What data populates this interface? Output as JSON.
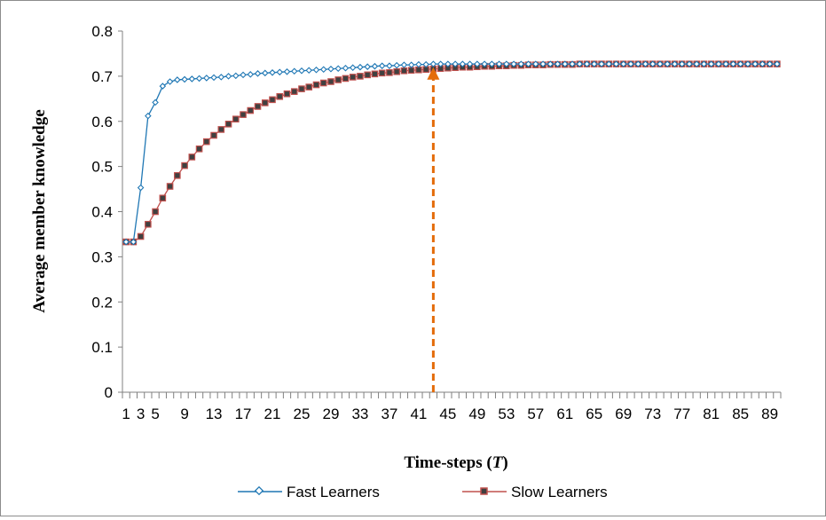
{
  "chart_data": {
    "type": "line",
    "xlabel_text": "Time-steps (",
    "xlabel_var": "T",
    "xlabel_close": ")",
    "ylabel": "Average member knowledge",
    "ylim": [
      0,
      0.8
    ],
    "yticks": [
      "0",
      "0.1",
      "0.2",
      "0.3",
      "0.4",
      "0.5",
      "0.6",
      "0.7",
      "0.8"
    ],
    "xlim": [
      1,
      90
    ],
    "xtick_labels": [
      "1",
      "3",
      "5",
      "9",
      "13",
      "17",
      "21",
      "25",
      "29",
      "33",
      "37",
      "41",
      "45",
      "49",
      "53",
      "57",
      "61",
      "65",
      "69",
      "73",
      "77",
      "81",
      "85",
      "89"
    ],
    "grid": false,
    "legend_position": "bottom",
    "marker_line_at_x": 43,
    "marker_line_top_y": 0.72,
    "marker_color": "#E46C0A",
    "series": [
      {
        "name": "Fast Learners",
        "color": "#1F77B4",
        "marker": "diamond",
        "values": [
          0.333,
          0.333,
          0.453,
          0.612,
          0.642,
          0.678,
          0.688,
          0.692,
          0.693,
          0.694,
          0.695,
          0.696,
          0.697,
          0.698,
          0.7,
          0.701,
          0.703,
          0.704,
          0.706,
          0.707,
          0.708,
          0.709,
          0.71,
          0.711,
          0.712,
          0.713,
          0.714,
          0.715,
          0.716,
          0.717,
          0.718,
          0.719,
          0.72,
          0.721,
          0.722,
          0.723,
          0.723,
          0.724,
          0.725,
          0.725,
          0.726,
          0.726,
          0.727,
          0.727,
          0.727,
          0.727,
          0.727,
          0.727,
          0.727,
          0.727,
          0.727,
          0.727,
          0.727,
          0.727,
          0.727,
          0.727,
          0.727,
          0.727,
          0.727,
          0.727,
          0.727,
          0.727,
          0.727,
          0.727,
          0.727,
          0.727,
          0.727,
          0.727,
          0.727,
          0.727,
          0.727,
          0.727,
          0.727,
          0.727,
          0.727,
          0.727,
          0.727,
          0.727,
          0.727,
          0.727,
          0.727,
          0.727,
          0.727,
          0.727,
          0.727,
          0.727,
          0.727,
          0.727,
          0.727,
          0.727
        ]
      },
      {
        "name": "Slow Learners",
        "color": "#C0504D",
        "marker": "square",
        "values": [
          0.333,
          0.333,
          0.345,
          0.372,
          0.4,
          0.43,
          0.456,
          0.48,
          0.502,
          0.521,
          0.539,
          0.555,
          0.569,
          0.582,
          0.594,
          0.605,
          0.615,
          0.624,
          0.633,
          0.641,
          0.648,
          0.655,
          0.661,
          0.666,
          0.672,
          0.676,
          0.681,
          0.685,
          0.688,
          0.692,
          0.695,
          0.698,
          0.7,
          0.703,
          0.705,
          0.707,
          0.708,
          0.71,
          0.712,
          0.713,
          0.714,
          0.715,
          0.716,
          0.717,
          0.718,
          0.719,
          0.72,
          0.72,
          0.721,
          0.722,
          0.722,
          0.723,
          0.723,
          0.724,
          0.724,
          0.725,
          0.725,
          0.725,
          0.726,
          0.726,
          0.726,
          0.726,
          0.727,
          0.727,
          0.727,
          0.727,
          0.727,
          0.727,
          0.727,
          0.727,
          0.727,
          0.727,
          0.727,
          0.727,
          0.727,
          0.727,
          0.727,
          0.727,
          0.727,
          0.727,
          0.727,
          0.727,
          0.727,
          0.727,
          0.727,
          0.727,
          0.727,
          0.727,
          0.727,
          0.727
        ]
      }
    ]
  }
}
